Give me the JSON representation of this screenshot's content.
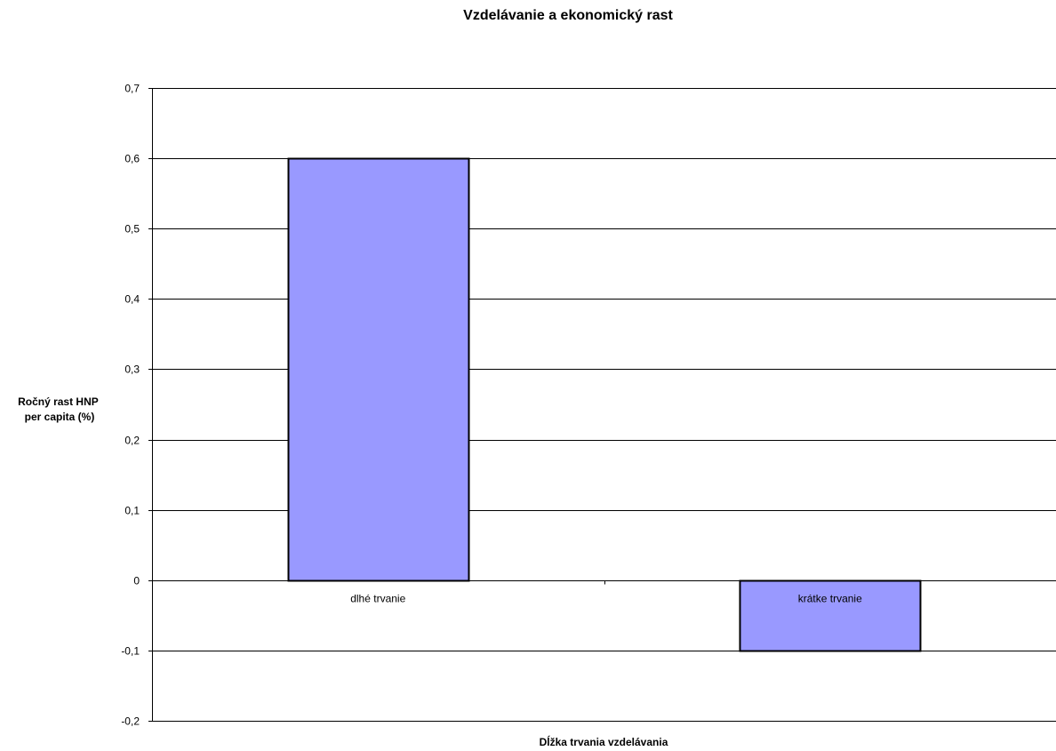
{
  "chart_data": {
    "type": "bar",
    "title": "Vzdelávanie a ekonomický rast",
    "xlabel": "Dĺžka trvania vzdelávania",
    "ylabel_lines": [
      "Ročný rast HNP",
      "per capita (%)"
    ],
    "categories": [
      "dlhé trvanie",
      "krátke trvanie"
    ],
    "values": [
      0.6,
      -0.1
    ],
    "ylim": [
      -0.2,
      0.7
    ],
    "yticks": [
      0.7,
      0.6,
      0.5,
      0.4,
      0.3,
      0.2,
      0.1,
      0,
      -0.1,
      -0.2
    ],
    "ytick_labels": [
      "0,7",
      "0,6",
      "0,5",
      "0,4",
      "0,3",
      "0,2",
      "0,1",
      "0",
      "-0,1",
      "-0,2"
    ],
    "grid": true,
    "legend": "none",
    "bar_color": "#9999ff",
    "bar_border_color": "#000000"
  }
}
